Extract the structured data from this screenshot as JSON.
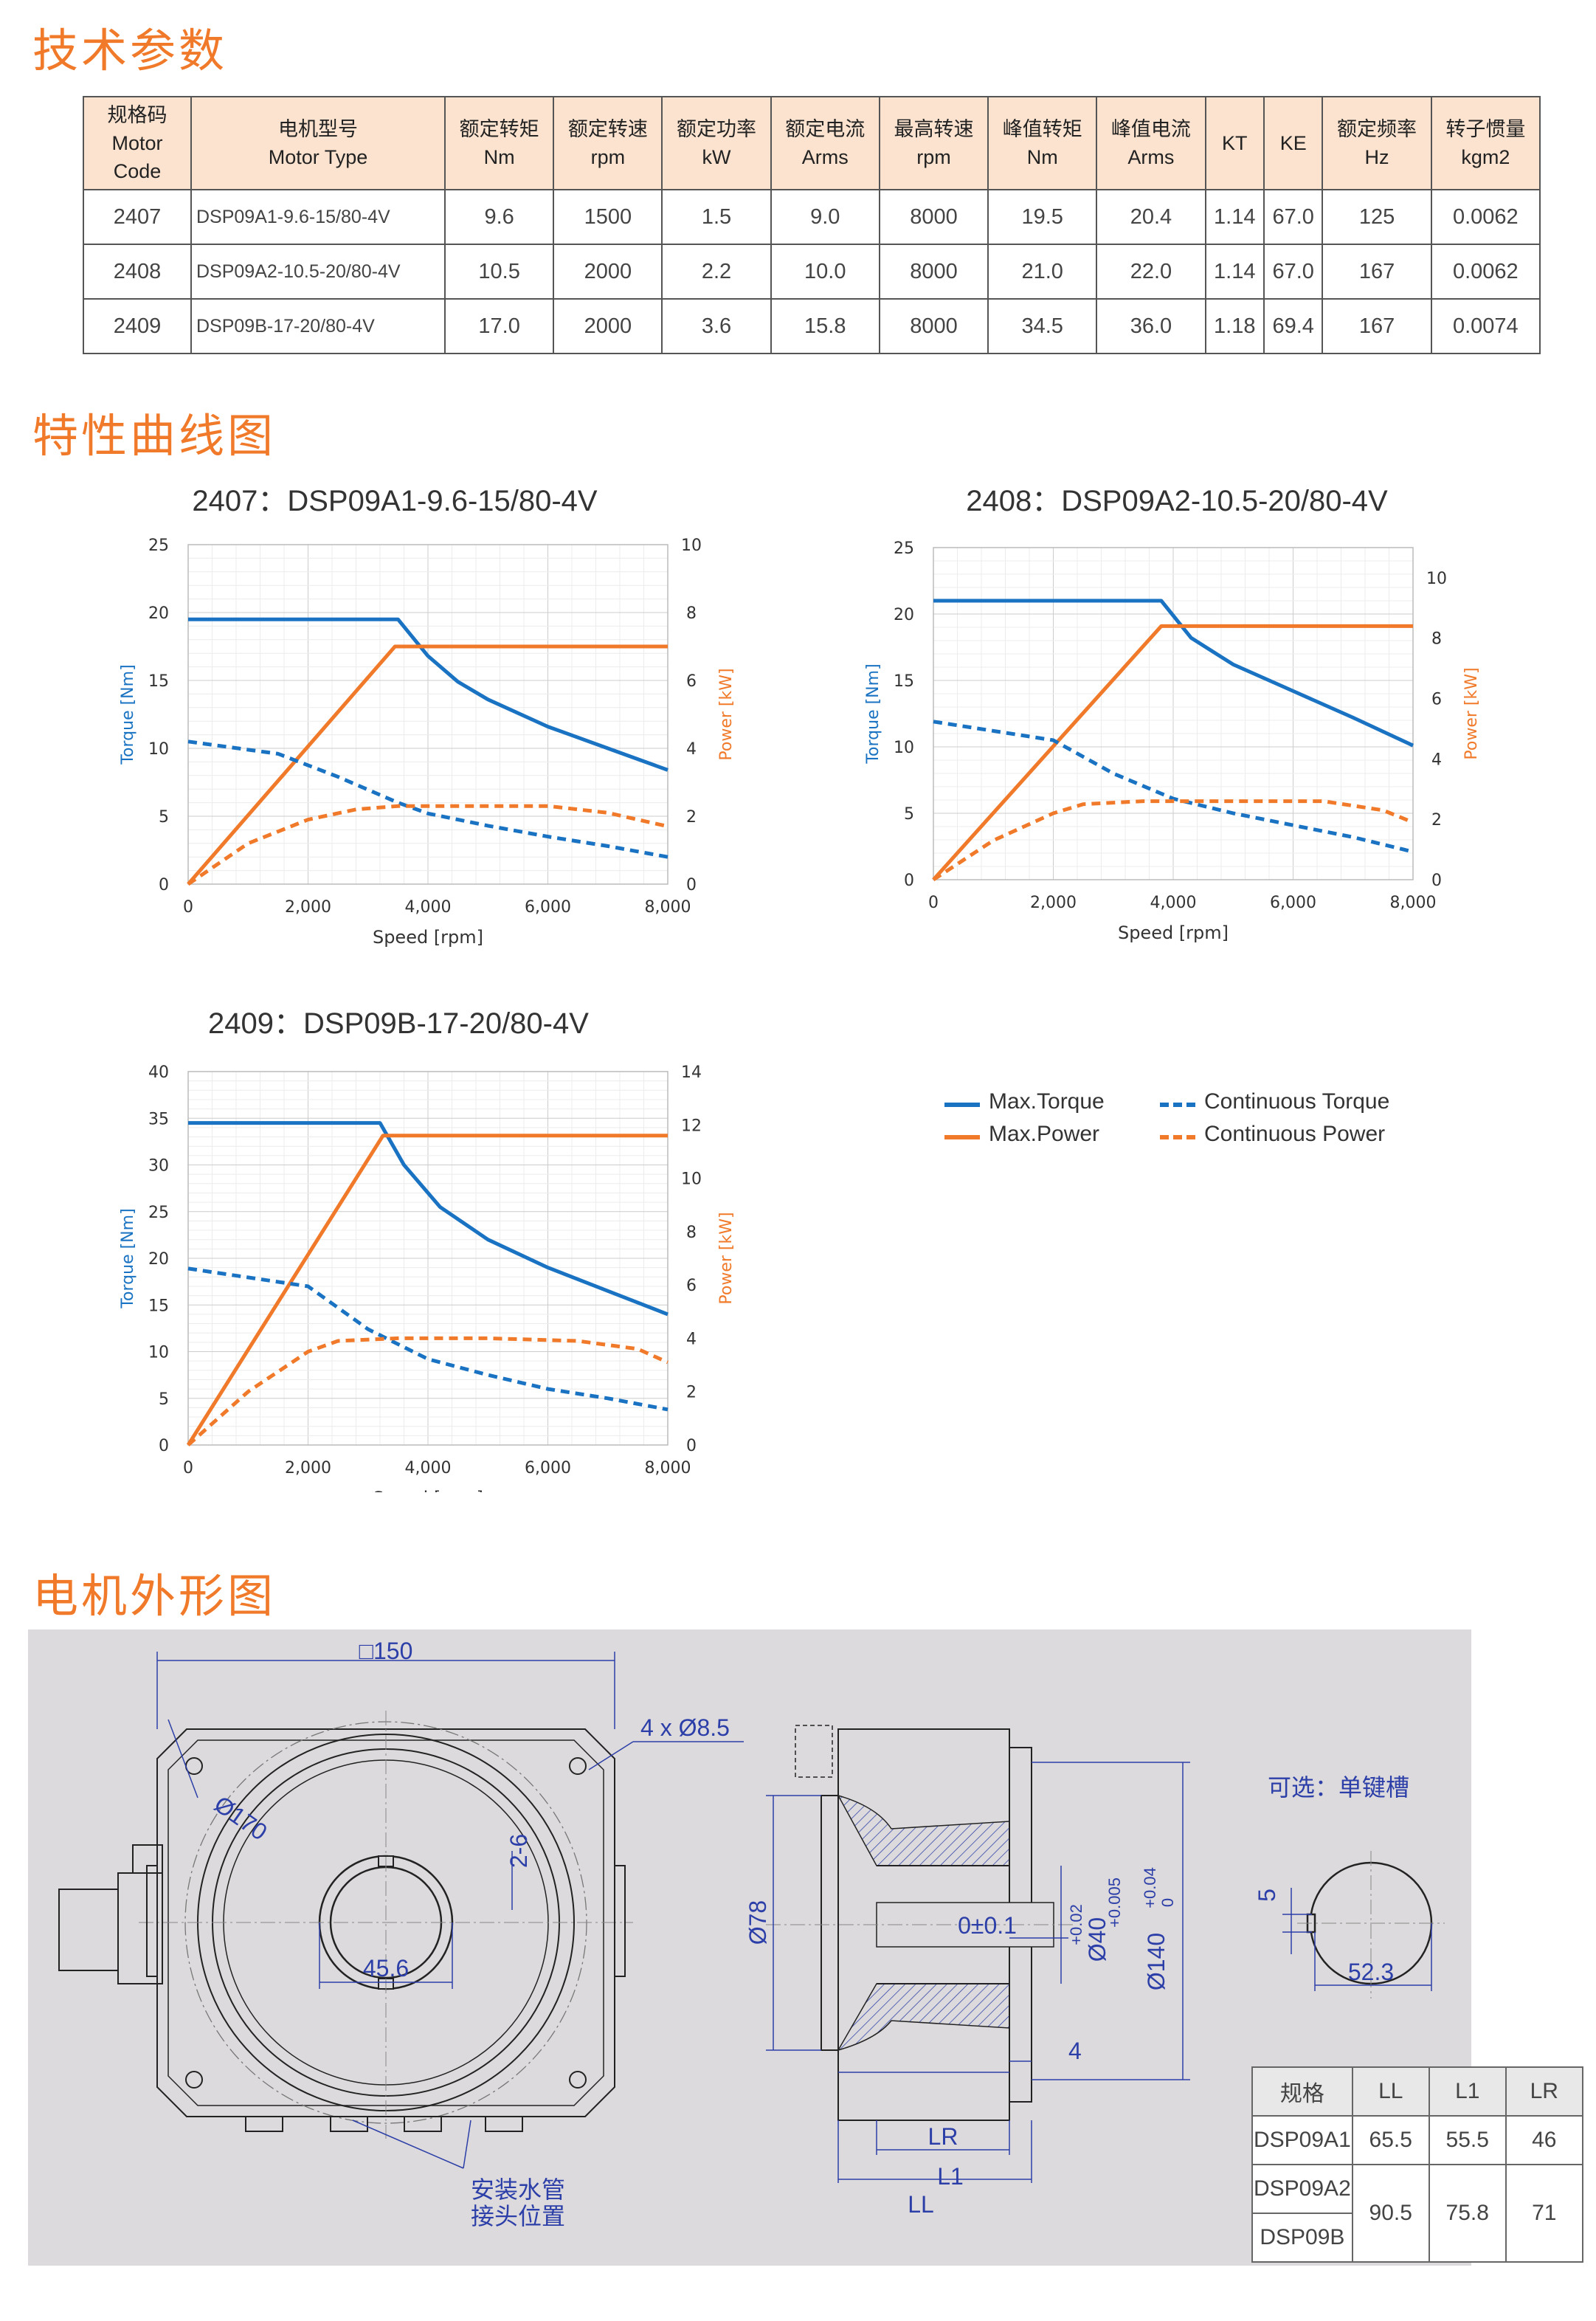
{
  "sections": {
    "params_title": "技术参数",
    "curves_title": "特性曲线图",
    "outline_title": "电机外形图"
  },
  "spec_table": {
    "headers": [
      [
        "规格码",
        "Motor",
        "Code"
      ],
      [
        "电机型号",
        "Motor Type"
      ],
      [
        "额定转矩",
        "Nm"
      ],
      [
        "额定转速",
        "rpm"
      ],
      [
        "额定功率",
        "kW"
      ],
      [
        "额定电流",
        "Arms"
      ],
      [
        "最高转速",
        "rpm"
      ],
      [
        "峰值转矩",
        "Nm"
      ],
      [
        "峰值电流",
        "Arms"
      ],
      [
        "KT"
      ],
      [
        "KE"
      ],
      [
        "额定频率",
        "Hz"
      ],
      [
        "转子惯量",
        "kgm2"
      ]
    ],
    "rows": [
      [
        "2407",
        "DSP09A1-9.6-15/80-4V",
        "9.6",
        "1500",
        "1.5",
        "9.0",
        "8000",
        "19.5",
        "20.4",
        "1.14",
        "67.0",
        "125",
        "0.0062"
      ],
      [
        "2408",
        "DSP09A2-10.5-20/80-4V",
        "10.5",
        "2000",
        "2.2",
        "10.0",
        "8000",
        "21.0",
        "22.0",
        "1.14",
        "67.0",
        "167",
        "0.0062"
      ],
      [
        "2409",
        "DSP09B-17-20/80-4V",
        "17.0",
        "2000",
        "3.6",
        "15.8",
        "8000",
        "34.5",
        "36.0",
        "1.18",
        "69.4",
        "167",
        "0.0074"
      ]
    ]
  },
  "legend": {
    "max_torque": "Max.Torque",
    "max_power": "Max.Power",
    "cont_torque": "Continuous Torque",
    "cont_power": "Continuous Power"
  },
  "colors": {
    "torque": "#1a73c2",
    "power": "#f07a2a",
    "accent": "#f07a2a",
    "dimension": "#2c3fa8"
  },
  "chart_data": [
    {
      "type": "line",
      "title": "2407：DSP09A1-9.6-15/80-4V",
      "xlabel": "Speed [rpm]",
      "ylabel": "Torque [Nm]",
      "y2label": "Power [kW]",
      "xlim": [
        0,
        8000
      ],
      "xticks": [
        "0",
        "2,000",
        "4,000",
        "6,000",
        "8,000"
      ],
      "ylim": [
        0,
        25
      ],
      "yticks": [
        "0",
        "5",
        "10",
        "15",
        "20",
        "25"
      ],
      "y2lim": [
        0,
        10
      ],
      "y2ticks": [
        "0",
        "2",
        "4",
        "6",
        "8",
        "10"
      ],
      "grid": true,
      "series": [
        {
          "name": "Max.Torque",
          "axis": "left",
          "style": "solid",
          "color": "#1a73c2",
          "x": [
            0,
            3500,
            4000,
            4500,
            5000,
            6000,
            7000,
            8000
          ],
          "y": [
            19.5,
            19.5,
            16.8,
            14.9,
            13.6,
            11.6,
            10.0,
            8.4
          ]
        },
        {
          "name": "Max.Power",
          "axis": "right",
          "style": "solid",
          "color": "#f07a2a",
          "x": [
            0,
            3450,
            8000
          ],
          "y": [
            0,
            7.0,
            7.0
          ]
        },
        {
          "name": "Continuous Torque",
          "axis": "left",
          "style": "dashed",
          "color": "#1a73c2",
          "x": [
            0,
            1500,
            2500,
            3500,
            4000,
            5000,
            6000,
            7000,
            8000
          ],
          "y": [
            10.5,
            9.6,
            7.9,
            6.0,
            5.2,
            4.3,
            3.5,
            2.8,
            2.0
          ]
        },
        {
          "name": "Continuous Power",
          "axis": "right",
          "style": "dashed",
          "color": "#f07a2a",
          "x": [
            0,
            1000,
            2000,
            2800,
            3500,
            4500,
            6000,
            7000,
            8000
          ],
          "y": [
            0,
            1.2,
            1.9,
            2.2,
            2.3,
            2.3,
            2.3,
            2.1,
            1.7
          ]
        }
      ]
    },
    {
      "type": "line",
      "title": "2408：DSP09A2-10.5-20/80-4V",
      "xlabel": "Speed [rpm]",
      "ylabel": "Torque [Nm]",
      "y2label": "Power [kW]",
      "xlim": [
        0,
        8000
      ],
      "xticks": [
        "0",
        "2,000",
        "4,000",
        "6,000",
        "8,000"
      ],
      "ylim": [
        0,
        25
      ],
      "yticks": [
        "0",
        "5",
        "10",
        "15",
        "20",
        "25"
      ],
      "y2lim": [
        0,
        11
      ],
      "y2ticks": [
        "0",
        "2",
        "4",
        "6",
        "8",
        "10"
      ],
      "grid": true,
      "series": [
        {
          "name": "Max.Torque",
          "axis": "left",
          "style": "solid",
          "color": "#1a73c2",
          "x": [
            0,
            3800,
            4300,
            5000,
            6000,
            7000,
            8000
          ],
          "y": [
            21.0,
            21.0,
            18.2,
            16.2,
            14.2,
            12.2,
            10.1
          ]
        },
        {
          "name": "Max.Power",
          "axis": "right",
          "style": "solid",
          "color": "#f07a2a",
          "x": [
            0,
            3800,
            8000
          ],
          "y": [
            0,
            8.4,
            8.4
          ]
        },
        {
          "name": "Continuous Torque",
          "axis": "left",
          "style": "dashed",
          "color": "#1a73c2",
          "x": [
            0,
            2000,
            3000,
            4000,
            5000,
            6000,
            7000,
            8000
          ],
          "y": [
            11.9,
            10.5,
            8.0,
            6.1,
            5.0,
            4.1,
            3.2,
            2.1
          ]
        },
        {
          "name": "Continuous Power",
          "axis": "right",
          "style": "dashed",
          "color": "#f07a2a",
          "x": [
            0,
            1000,
            2000,
            2500,
            3500,
            5000,
            6500,
            7500,
            8000
          ],
          "y": [
            0,
            1.3,
            2.2,
            2.5,
            2.6,
            2.6,
            2.6,
            2.3,
            1.9
          ]
        }
      ]
    },
    {
      "type": "line",
      "title": "2409：DSP09B-17-20/80-4V",
      "xlabel": "Speed [rpm]",
      "ylabel": "Torque [Nm]",
      "y2label": "Power [kW]",
      "xlim": [
        0,
        8000
      ],
      "xticks": [
        "0",
        "2,000",
        "4,000",
        "6,000",
        "8,000"
      ],
      "ylim": [
        0,
        40
      ],
      "yticks": [
        "0",
        "5",
        "10",
        "15",
        "20",
        "25",
        "30",
        "35",
        "40"
      ],
      "y2lim": [
        0,
        14
      ],
      "y2ticks": [
        "0",
        "2",
        "4",
        "6",
        "8",
        "10",
        "12",
        "14"
      ],
      "grid": true,
      "series": [
        {
          "name": "Max.Torque",
          "axis": "left",
          "style": "solid",
          "color": "#1a73c2",
          "x": [
            0,
            3200,
            3600,
            4200,
            5000,
            6000,
            7000,
            8000
          ],
          "y": [
            34.5,
            34.5,
            30.0,
            25.5,
            22.0,
            19.0,
            16.5,
            14.0
          ]
        },
        {
          "name": "Max.Power",
          "axis": "right",
          "style": "solid",
          "color": "#f07a2a",
          "x": [
            0,
            3250,
            8000
          ],
          "y": [
            0,
            11.6,
            11.6
          ]
        },
        {
          "name": "Continuous Torque",
          "axis": "left",
          "style": "dashed",
          "color": "#1a73c2",
          "x": [
            0,
            2000,
            3000,
            4000,
            5000,
            6000,
            7000,
            8000
          ],
          "y": [
            18.9,
            17.0,
            12.4,
            9.2,
            7.5,
            6.0,
            5.0,
            3.8
          ]
        },
        {
          "name": "Continuous Power",
          "axis": "right",
          "style": "dashed",
          "color": "#f07a2a",
          "x": [
            0,
            1000,
            2000,
            2500,
            3500,
            5000,
            6500,
            7500,
            8000
          ],
          "y": [
            0,
            2.0,
            3.5,
            3.9,
            4.0,
            4.0,
            3.9,
            3.6,
            3.1
          ]
        }
      ]
    }
  ],
  "drawing": {
    "square": "□150",
    "holes": "4 x Ø8.5",
    "pcd": "Ø170",
    "keyway": "2-6",
    "bore_span": "45.6",
    "pipe_note_line1": "安装水管",
    "pipe_note_line2": "接头位置",
    "d78": "Ø78",
    "d40": "Ø40",
    "d40_tol_up": "+0.02",
    "d40_tol_dn": "+0.005",
    "d140": "Ø140",
    "d140_tol_up": "+0.04",
    "d140_tol_dn": "0",
    "runout": "0±0.1",
    "lr": "LR",
    "l1": "L1",
    "ll": "LL",
    "four": "4",
    "option_title": "可选：单键槽",
    "key_width": "5",
    "key_depth": "52.3"
  },
  "dim_table": {
    "headers": [
      "规格",
      "LL",
      "L1",
      "LR"
    ],
    "rows": [
      [
        "DSP09A1",
        "65.5",
        "55.5",
        "46"
      ],
      [
        "DSP09A2",
        "90.5",
        "75.8",
        "71"
      ],
      [
        "DSP09B",
        "",
        "",
        ""
      ]
    ]
  }
}
